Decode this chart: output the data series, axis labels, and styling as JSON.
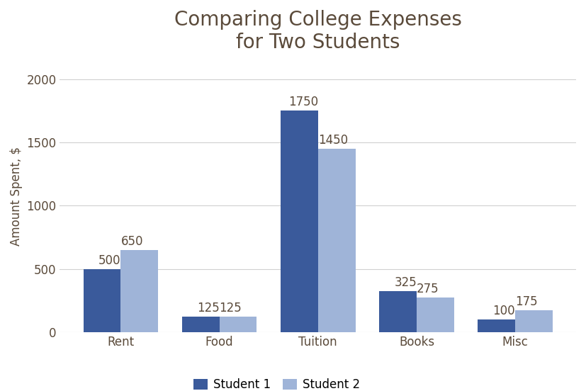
{
  "title": "Comparing College Expenses\nfor Two Students",
  "ylabel": "Amount Spent, $",
  "categories": [
    "Rent",
    "Food",
    "Tuition",
    "Books",
    "Misc"
  ],
  "student1_values": [
    500,
    125,
    1750,
    325,
    100
  ],
  "student2_values": [
    650,
    125,
    1450,
    275,
    175
  ],
  "student1_color": "#3A5A9B",
  "student2_color": "#9FB4D8",
  "legend_labels": [
    "Student 1",
    "Student 2"
  ],
  "ylim": [
    0,
    2150
  ],
  "yticks": [
    0,
    500,
    1000,
    1500,
    2000
  ],
  "bar_width": 0.38,
  "title_fontsize": 20,
  "label_fontsize": 12,
  "tick_fontsize": 12,
  "annotation_fontsize": 12,
  "legend_fontsize": 12,
  "background_color": "#ffffff",
  "grid_color": "#d0d0d0",
  "text_color": "#5a4a3a"
}
